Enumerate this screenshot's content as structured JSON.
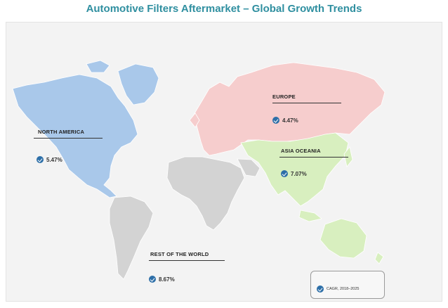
{
  "title": "Automotive Filters Aftermarket – Global Growth Trends",
  "regions": {
    "north_america": {
      "name": "NORTH AMERICA",
      "cagr": "5.47%",
      "color": "#a9c8ea"
    },
    "europe": {
      "name": "EUROPE",
      "cagr": "4.47%",
      "color": "#f6cdcd"
    },
    "asia_oceania": {
      "name": "ASIA OCEANIA",
      "cagr": "7.07%",
      "color": "#d8efbf"
    },
    "rest_of_world": {
      "name": "REST OF THE WORLD",
      "cagr": "8.67%",
      "color": "#d3d3d3"
    }
  },
  "legend": {
    "label": "CAGR, 2018–2025",
    "icon": "check-badge-icon"
  }
}
